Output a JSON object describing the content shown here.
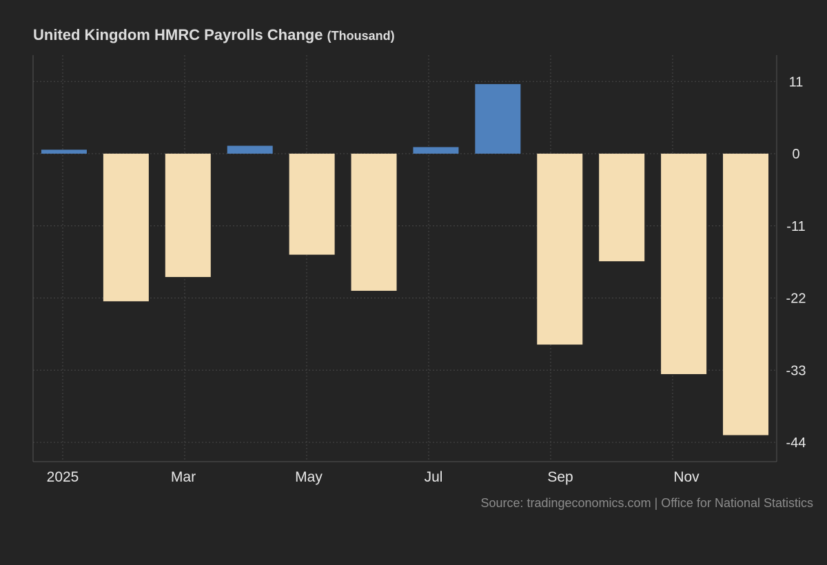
{
  "title": "United Kingdom HMRC Payrolls Change",
  "unit_label": "(Thousand)",
  "source": "Source: tradingeconomics.com | Office for National Statistics",
  "colors": {
    "background": "#242424",
    "positive": "#4f81bd",
    "negative": "#f5deb3",
    "grid": "#4a4a4a",
    "axis_text": "#e8e8e8"
  },
  "chart_data": {
    "type": "bar",
    "title": "United Kingdom HMRC Payrolls Change",
    "unit": "Thousand",
    "categories": [
      "2025-01",
      "2025-02",
      "2025-03",
      "2025-04",
      "2025-05",
      "2025-06",
      "2025-07",
      "2025-08",
      "2025-09",
      "2025-10",
      "2025-11",
      "2025-12"
    ],
    "values": [
      0.6,
      -22.5,
      -18.8,
      1.2,
      -15.4,
      -20.9,
      1.0,
      10.6,
      -29.1,
      -16.4,
      -33.6,
      -42.9
    ],
    "x_tick_labels": [
      "2025",
      "Mar",
      "May",
      "Jul",
      "Sep",
      "Nov"
    ],
    "y_ticks": [
      11,
      0,
      -11,
      -22,
      -33,
      -44
    ],
    "ylim": [
      -47,
      15
    ],
    "grid": true,
    "y_axis_side": "right",
    "xlabel": "",
    "ylabel": ""
  }
}
